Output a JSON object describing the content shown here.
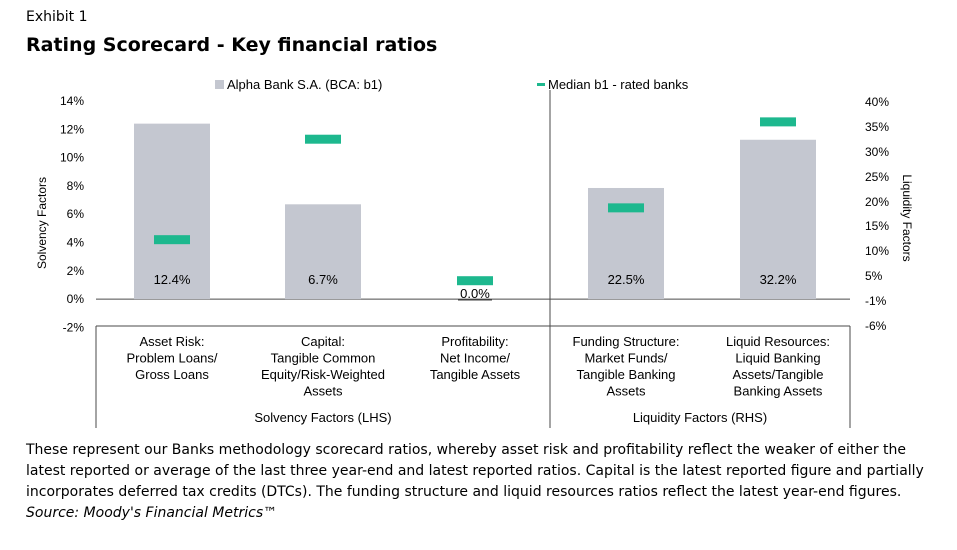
{
  "header": {
    "exhibit": "Exhibit 1",
    "title": "Rating Scorecard - Key financial ratios"
  },
  "chart_data": {
    "type": "bar",
    "legend": [
      {
        "name": "Alpha Bank S.A. (BCA: b1)",
        "kind": "bar",
        "color": "#c4c7d0"
      },
      {
        "name": "Median b1 - rated banks",
        "kind": "marker",
        "color": "#1db88e"
      }
    ],
    "legend_position": "top",
    "left_axis": {
      "label": "Solvency Factors",
      "ylim": [
        -2,
        14
      ],
      "ticks": [
        "14%",
        "12%",
        "10%",
        "8%",
        "6%",
        "4%",
        "2%",
        "0%",
        "-2%"
      ]
    },
    "right_axis": {
      "label": "Liquidity Factors",
      "ticks": [
        "40%",
        "35%",
        "30%",
        "25%",
        "20%",
        "15%",
        "10%",
        "5%",
        "-1%",
        "-6%"
      ]
    },
    "categories": [
      {
        "lines": [
          "Asset Risk:",
          "Problem Loans/",
          "Gross Loans"
        ]
      },
      {
        "lines": [
          "Capital:",
          "Tangible Common",
          "Equity/Risk-Weighted",
          "Assets"
        ]
      },
      {
        "lines": [
          "Profitability:",
          "Net Income/",
          "Tangible Assets"
        ]
      },
      {
        "lines": [
          "Funding Structure:",
          "Market Funds/",
          "Tangible Banking",
          "Assets"
        ]
      },
      {
        "lines": [
          "Liquid Resources:",
          "Liquid Banking",
          "Assets/Tangible",
          "Banking Assets"
        ]
      }
    ],
    "series": [
      {
        "name": "Alpha Bank S.A. (BCA: b1)",
        "values": [
          12.4,
          6.7,
          0.0,
          22.5,
          32.2
        ],
        "labels": [
          "12.4%",
          "6.7%",
          "0.0%",
          "22.5%",
          "32.2%"
        ],
        "axis": [
          "left",
          "left",
          "left",
          "right",
          "right"
        ]
      },
      {
        "name": "Median b1 - rated banks",
        "values": [
          4.2,
          11.3,
          1.3,
          18.5,
          35.8
        ],
        "axis": [
          "left",
          "left",
          "left",
          "right",
          "right"
        ]
      }
    ],
    "groups": [
      {
        "label": "Solvency Factors (LHS)"
      },
      {
        "label": "Liquidity Factors (RHS)"
      }
    ],
    "grid": false
  },
  "note": "These represent our Banks methodology scorecard ratios, whereby asset risk and profitability reflect the weaker of either the latest reported or average of the last three year-end and latest reported ratios. Capital is the latest reported figure and partially incorporates deferred tax credits (DTCs). The funding structure and liquid resources ratios reflect the latest year-end figures.",
  "source": "Source: Moody's Financial Metrics™"
}
